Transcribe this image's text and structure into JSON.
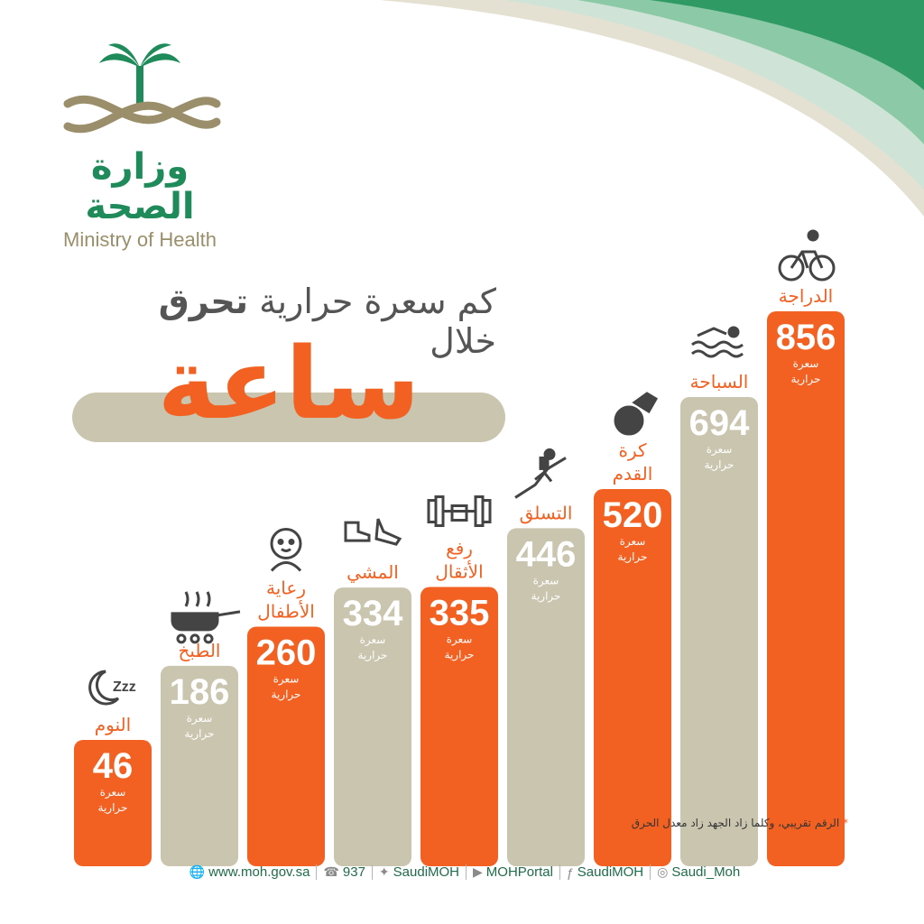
{
  "logo": {
    "arabic": "وزارة الصحة",
    "english": "Ministry of Health"
  },
  "headline": {
    "prefix": "كم سعرة حرارية",
    "bold": "تحرق",
    "suffix": "خلال",
    "big_word": "ساعة"
  },
  "colors": {
    "orange": "#f26122",
    "beige": "#c9c5af",
    "green": "#1f8a5a",
    "text_gray": "#555555"
  },
  "chart_data": {
    "type": "bar",
    "categories": [
      "النوم",
      "الطبخ",
      "رعاية الأطفال",
      "المشي",
      "رفع الأثقال",
      "التسلق",
      "كرة القدم",
      "السباحة",
      "الدراجة"
    ],
    "values": [
      46,
      186,
      260,
      334,
      335,
      446,
      520,
      694,
      856
    ],
    "unit_line1": "سعرة",
    "unit_line2": "حرارية",
    "bar_colors": [
      "#f26122",
      "#c9c5af",
      "#f26122",
      "#c9c5af",
      "#f26122",
      "#c9c5af",
      "#f26122",
      "#c9c5af",
      "#f26122"
    ],
    "icons": [
      "sleep-icon",
      "cooking-pan-icon",
      "baby-icon",
      "walking-shoes-icon",
      "dumbbell-icon",
      "climbing-icon",
      "football-icon",
      "swimming-icon",
      "bicycle-icon"
    ]
  },
  "note": {
    "star": "*",
    "text": "الرقم تقريبي، وكلما زاد الجهد زاد معدل الحرق"
  },
  "footer": [
    {
      "icon": "globe-icon",
      "text": "www.moh.gov.sa"
    },
    {
      "icon": "phone-icon",
      "text": "937"
    },
    {
      "icon": "twitter-icon",
      "text": "SaudiMOH"
    },
    {
      "icon": "youtube-icon",
      "text": "MOHPortal"
    },
    {
      "icon": "facebook-icon",
      "text": "SaudiMOH"
    },
    {
      "icon": "snapchat-icon",
      "text": "Saudi_Moh"
    }
  ]
}
